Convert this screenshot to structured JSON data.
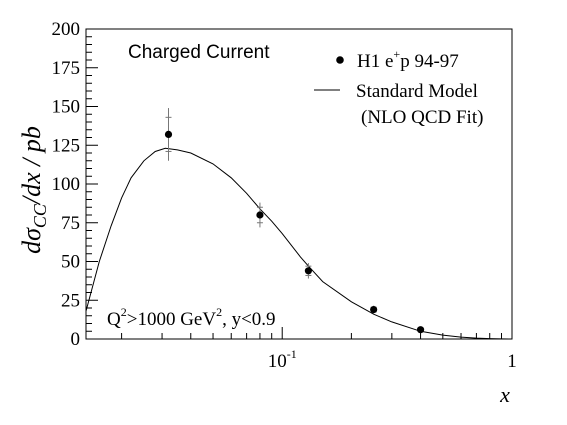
{
  "chart_data": {
    "type": "scatter",
    "ylabel_main": "dσ",
    "ylabel_sub": "CC",
    "ylabel_tail": "/dx  / pb",
    "xlabel": "x",
    "xscale": "log",
    "xlim": [
      0.014,
      1.0
    ],
    "ylim": [
      0,
      200
    ],
    "xticks": [
      {
        "value": 0.1,
        "label": "10",
        "sup": "-1"
      },
      {
        "value": 1.0,
        "label": "1",
        "sup": ""
      }
    ],
    "yticks": [
      0,
      25,
      50,
      75,
      100,
      125,
      150,
      175,
      200
    ],
    "annotation_top": "Charged Current",
    "annotation_bottom": {
      "a": "Q",
      "a_sup": "2",
      "b": ">1000 GeV",
      "b_sup": "2",
      "c": ", y<0.9"
    },
    "legend": {
      "points_label_a": "H1  e",
      "points_label_sup": "+",
      "points_label_b": "p 94-97",
      "line_label_1": "Standard Model",
      "line_label_2": "(NLO QCD Fit)"
    },
    "series": [
      {
        "name": "H1 e+p 94-97",
        "kind": "points",
        "points": [
          {
            "x": 0.032,
            "y": 132,
            "stat": 11,
            "tot": 17
          },
          {
            "x": 0.08,
            "y": 80,
            "stat": 5,
            "tot": 8
          },
          {
            "x": 0.13,
            "y": 44,
            "stat": 3,
            "tot": 5
          },
          {
            "x": 0.25,
            "y": 19,
            "stat": 1.5,
            "tot": 2.5
          },
          {
            "x": 0.4,
            "y": 6,
            "stat": 0.8,
            "tot": 1.2
          }
        ]
      },
      {
        "name": "Standard Model (NLO QCD Fit)",
        "kind": "line",
        "points": [
          [
            0.014,
            18
          ],
          [
            0.016,
            50
          ],
          [
            0.018,
            73
          ],
          [
            0.02,
            91
          ],
          [
            0.022,
            104
          ],
          [
            0.025,
            115
          ],
          [
            0.028,
            121
          ],
          [
            0.031,
            123
          ],
          [
            0.035,
            122
          ],
          [
            0.04,
            120
          ],
          [
            0.05,
            113
          ],
          [
            0.06,
            104
          ],
          [
            0.07,
            94
          ],
          [
            0.08,
            84
          ],
          [
            0.09,
            76
          ],
          [
            0.1,
            68
          ],
          [
            0.12,
            53
          ],
          [
            0.13,
            47
          ],
          [
            0.15,
            37
          ],
          [
            0.2,
            24
          ],
          [
            0.25,
            16
          ],
          [
            0.3,
            11
          ],
          [
            0.4,
            5
          ],
          [
            0.5,
            2.5
          ],
          [
            0.6,
            1.2
          ],
          [
            0.7,
            0.6
          ],
          [
            0.8,
            0.25
          ],
          [
            0.9,
            0.08
          ],
          [
            1.0,
            0
          ]
        ]
      }
    ]
  }
}
